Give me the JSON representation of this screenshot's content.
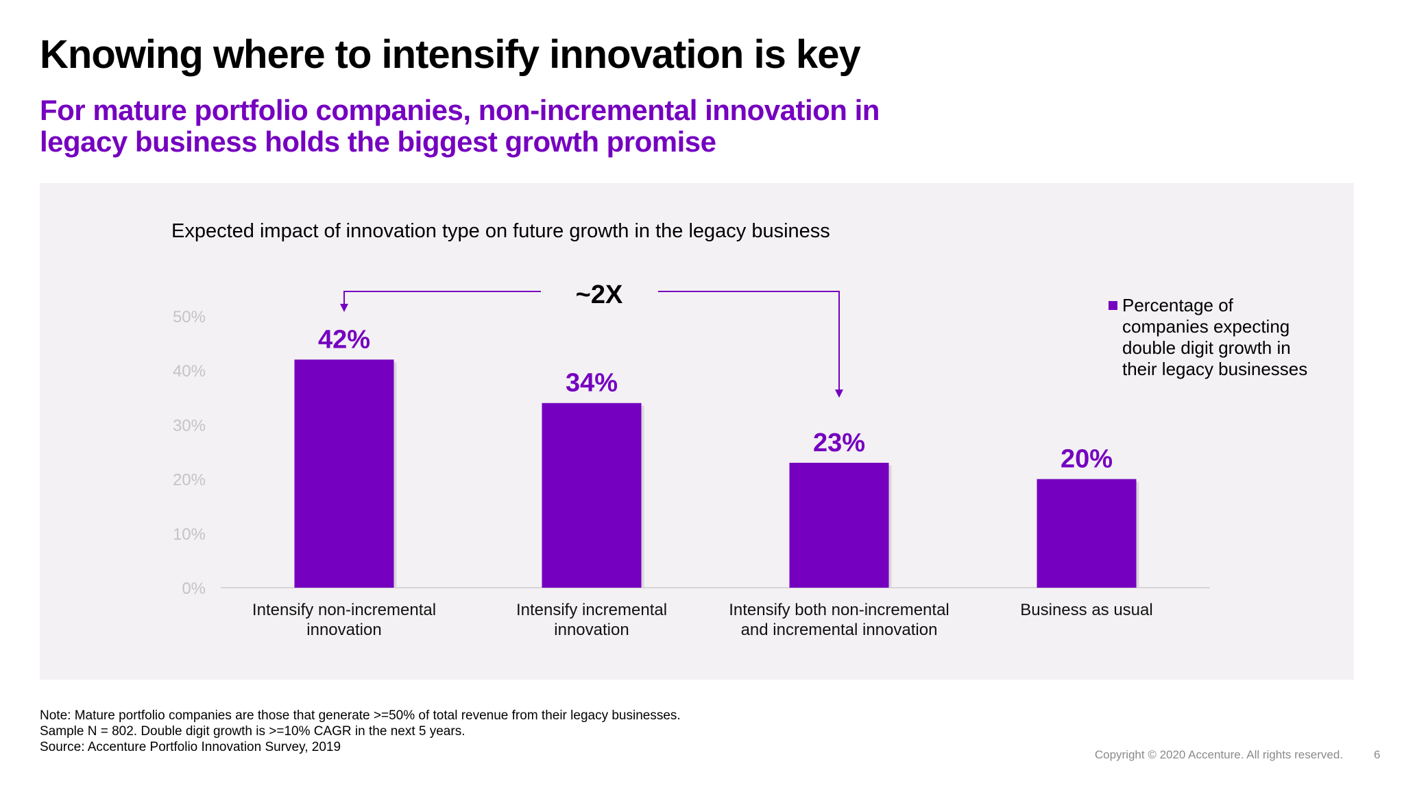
{
  "header": {
    "title": "Knowing where to intensify innovation is key",
    "subtitle_line1": "For mature portfolio companies, non-incremental innovation in",
    "subtitle_line2": "legacy business holds the biggest growth promise"
  },
  "colors": {
    "accent": "#7500c0",
    "panel": "#f3f1f3",
    "axis_text": "#c4c4c4"
  },
  "chart_data": {
    "type": "bar",
    "title": "Expected impact of innovation type on future growth in the legacy business",
    "categories": [
      [
        "Intensify non-incremental",
        "innovation"
      ],
      [
        "Intensify incremental",
        "innovation"
      ],
      [
        "Intensify both non-incremental",
        "and incremental innovation"
      ],
      [
        "Business as usual"
      ]
    ],
    "series": [
      {
        "name": "Percentage of companies expecting double digit growth in their legacy businesses",
        "values": [
          42,
          34,
          23,
          20
        ]
      }
    ],
    "data_labels": [
      "42%",
      "34%",
      "23%",
      "20%"
    ],
    "ylim": [
      0,
      50
    ],
    "yticks": [
      "0%",
      "10%",
      "20%",
      "30%",
      "40%",
      "50%"
    ],
    "grid": false,
    "legend_position": "top-right",
    "legend_lines": [
      "Percentage of",
      "companies expecting",
      "double digit growth in",
      "their legacy businesses"
    ],
    "annotation": {
      "text": "~2X",
      "from_category": 0,
      "to_category": 2
    }
  },
  "footer": {
    "note_lines": [
      "Note: Mature portfolio companies are those that generate >=50% of total revenue from their legacy businesses.",
      "Sample N = 802. Double digit growth is >=10% CAGR in the next 5 years.",
      "Source: Accenture Portfolio Innovation Survey, 2019"
    ],
    "copyright": "Copyright © 2020 Accenture. All rights reserved.",
    "page_number": "6"
  }
}
